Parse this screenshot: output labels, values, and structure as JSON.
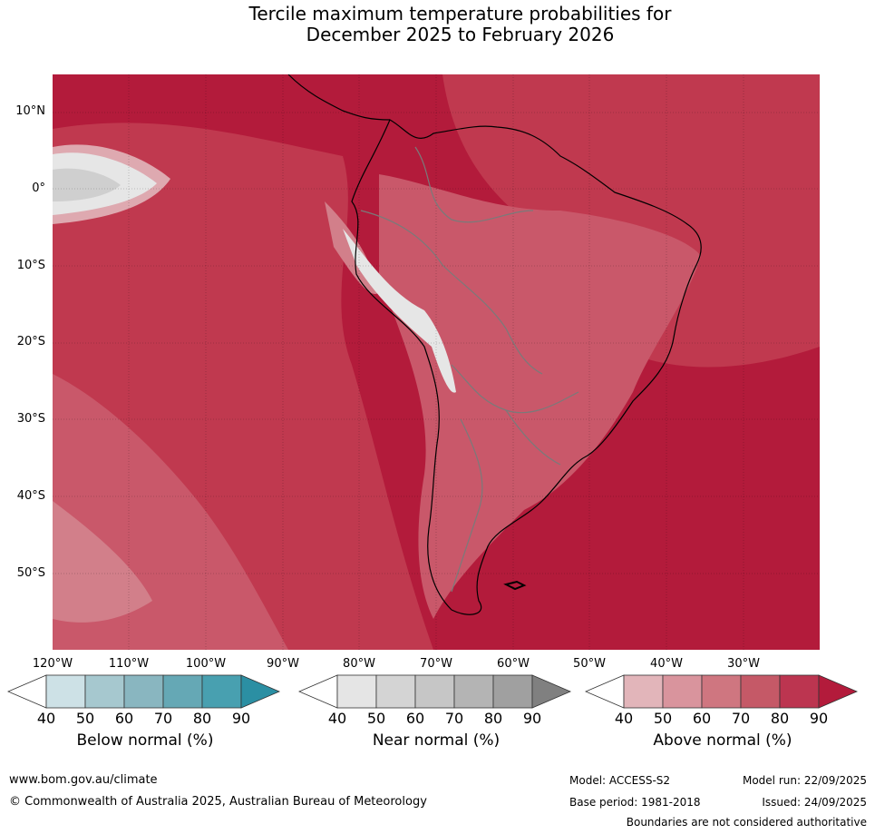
{
  "title": {
    "line1": "Tercile maximum temperature probabilities for",
    "line2": "December 2025 to February 2026"
  },
  "map": {
    "lat_labels": [
      "10°N",
      "0°",
      "10°S",
      "20°S",
      "30°S",
      "40°S",
      "50°S"
    ],
    "lon_labels": [
      "120°W",
      "110°W",
      "100°W",
      "90°W",
      "80°W",
      "70°W",
      "60°W",
      "50°W",
      "40°W",
      "30°W"
    ],
    "lat_range": [
      -60,
      15
    ],
    "lon_range": [
      -120,
      -20
    ],
    "colors": {
      "above_90": "#b31b3b",
      "above_80": "#c0394f",
      "above_70": "#c9586a",
      "above_60": "#d27f8a",
      "above_50": "#dea9b0",
      "near_50": "#e6e6e6",
      "near_60": "#cfcfcf",
      "coast": "#000000",
      "border": "#7a7a7a"
    }
  },
  "legends": [
    {
      "title": "Below normal (%)",
      "ticks": [
        "40",
        "50",
        "60",
        "70",
        "80",
        "90"
      ],
      "colors": [
        "#ffffff",
        "#cde1e6",
        "#a6c8cf",
        "#89b6c0",
        "#65a8b5",
        "#48a0b0",
        "#2b8fa3"
      ]
    },
    {
      "title": "Near normal (%)",
      "ticks": [
        "40",
        "50",
        "60",
        "70",
        "80",
        "90"
      ],
      "colors": [
        "#ffffff",
        "#e5e5e5",
        "#d4d4d4",
        "#c6c6c6",
        "#b4b4b4",
        "#a0a0a0",
        "#808080"
      ]
    },
    {
      "title": "Above normal (%)",
      "ticks": [
        "40",
        "50",
        "60",
        "70",
        "80",
        "90"
      ],
      "colors": [
        "#ffffff",
        "#e2b5ba",
        "#d9949d",
        "#cf7680",
        "#c55967",
        "#bc3550",
        "#b31b3b"
      ]
    }
  ],
  "footer": {
    "website": "www.bom.gov.au/climate",
    "copyright": "© Commonwealth of Australia 2025, Australian Bureau of Meteorology",
    "model": "Model: ACCESS-S2",
    "base_period": "Base period: 1981-2018",
    "model_run": "Model run: 22/09/2025",
    "issued": "Issued: 24/09/2025",
    "disclaimer": "Boundaries are not considered authoritative"
  }
}
